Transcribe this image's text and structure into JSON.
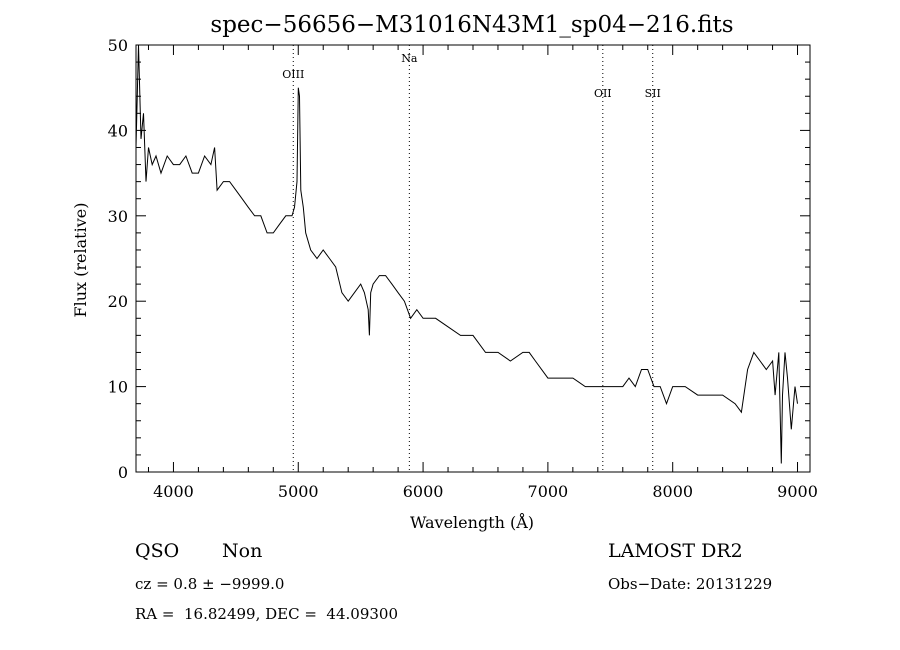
{
  "chart_data": {
    "type": "line",
    "title": "spec−56656−M31016N43M1_sp04−216.fits",
    "xlabel": "Wavelength (Å)",
    "ylabel": "Flux (relative)",
    "xlim": [
      3700,
      9100
    ],
    "ylim": [
      0,
      50
    ],
    "xticks": [
      4000,
      5000,
      6000,
      7000,
      8000,
      9000
    ],
    "yticks": [
      0,
      10,
      20,
      30,
      40,
      50
    ],
    "grid": false,
    "line_color": "#000000",
    "annotations": [
      {
        "label": "OIII",
        "x": 4960
      },
      {
        "label": "Na",
        "x": 5890
      },
      {
        "label": "OII",
        "x": 7440
      },
      {
        "label": "SII",
        "x": 7840
      }
    ],
    "series": [
      {
        "x": [
          3700,
          3720,
          3740,
          3760,
          3780,
          3800,
          3830,
          3860,
          3900,
          3950,
          4000,
          4050,
          4100,
          4150,
          4200,
          4250,
          4300,
          4330,
          4350,
          4400,
          4450,
          4500,
          4550,
          4600,
          4650,
          4700,
          4750,
          4800,
          4850,
          4900,
          4950,
          4970,
          4990,
          5000,
          5010,
          5020,
          5040,
          5060,
          5100,
          5150,
          5200,
          5250,
          5300,
          5350,
          5400,
          5450,
          5500,
          5530,
          5560,
          5570,
          5580,
          5600,
          5650,
          5700,
          5750,
          5800,
          5850,
          5900,
          5950,
          6000,
          6100,
          6200,
          6300,
          6400,
          6500,
          6600,
          6700,
          6800,
          6850,
          6900,
          7000,
          7100,
          7200,
          7300,
          7400,
          7500,
          7600,
          7650,
          7700,
          7750,
          7800,
          7850,
          7900,
          7950,
          8000,
          8100,
          8200,
          8300,
          8400,
          8500,
          8550,
          8600,
          8650,
          8700,
          8750,
          8800,
          8820,
          8850,
          8870,
          8880,
          8900,
          8920,
          8950,
          8980,
          9000
        ],
        "values": [
          38,
          50,
          39,
          42,
          34,
          38,
          36,
          37,
          35,
          37,
          36,
          36,
          37,
          35,
          35,
          37,
          36,
          38,
          33,
          34,
          34,
          33,
          32,
          31,
          30,
          30,
          28,
          28,
          29,
          30,
          30,
          31,
          34,
          45,
          44,
          33,
          31,
          28,
          26,
          25,
          26,
          25,
          24,
          21,
          20,
          21,
          22,
          21,
          19,
          16,
          21,
          22,
          23,
          23,
          22,
          21,
          20,
          18,
          19,
          18,
          18,
          17,
          16,
          16,
          14,
          14,
          13,
          14,
          14,
          13,
          11,
          11,
          11,
          10,
          10,
          10,
          10,
          11,
          10,
          12,
          12,
          10,
          10,
          8,
          10,
          10,
          9,
          9,
          9,
          8,
          7,
          12,
          14,
          13,
          12,
          13,
          9,
          14,
          1,
          9,
          14,
          11,
          5,
          10,
          8
        ]
      }
    ]
  },
  "footer": {
    "class_label": "QSO",
    "subclass_label": "Non",
    "survey": "LAMOST DR2",
    "cz": "cz = 0.8 ± −9999.0",
    "obs_date": "Obs−Date: 20131229",
    "coords": "RA =  16.82499, DEC =  44.09300"
  }
}
